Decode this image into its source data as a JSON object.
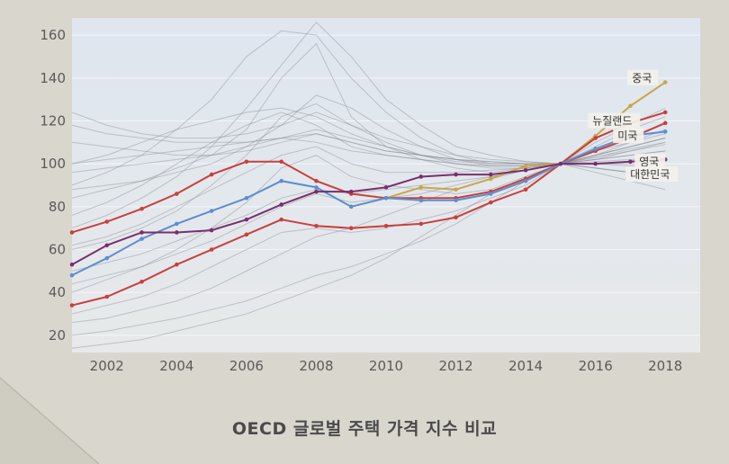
{
  "caption": "OECD 글로벌 주택 가격 지수 비교",
  "chart_data": {
    "type": "line",
    "title": "OECD 글로벌 주택 가격 지수 비교",
    "xlabel": "",
    "ylabel": "",
    "x": [
      2001,
      2002,
      2003,
      2004,
      2005,
      2006,
      2007,
      2008,
      2009,
      2010,
      2011,
      2012,
      2013,
      2014,
      2015,
      2016,
      2017,
      2018
    ],
    "xlim": [
      2001,
      2019
    ],
    "ylim": [
      12,
      168
    ],
    "xticks": [
      "2002",
      "2004",
      "2006",
      "2008",
      "2010",
      "2012",
      "2014",
      "2016",
      "2018"
    ],
    "yticks": [
      "20",
      "40",
      "60",
      "80",
      "100",
      "120",
      "140",
      "160"
    ],
    "grid": true,
    "series": [
      {
        "name": "중국",
        "color": "#c8a64a",
        "x": [
          2010,
          2011,
          2012,
          2013,
          2014,
          2015,
          2016,
          2017,
          2018
        ],
        "values": [
          84,
          89,
          88,
          93,
          99,
          100,
          113,
          127,
          138
        ]
      },
      {
        "name": "뉴질랜드",
        "color": "#c8403c",
        "x": [
          2001,
          2002,
          2003,
          2004,
          2005,
          2006,
          2007,
          2008,
          2009,
          2010,
          2011,
          2012,
          2013,
          2014,
          2015,
          2016,
          2017,
          2018
        ],
        "values": [
          34,
          38,
          45,
          53,
          60,
          67,
          74,
          71,
          70,
          71,
          72,
          75,
          82,
          88,
          100,
          112,
          119,
          124
        ]
      },
      {
        "name": "미국",
        "color": "#c8403c",
        "x": [
          2001,
          2002,
          2003,
          2004,
          2005,
          2006,
          2007,
          2008,
          2009,
          2010,
          2011,
          2012,
          2013,
          2014,
          2015,
          2016,
          2017,
          2018
        ],
        "values": [
          68,
          73,
          79,
          86,
          95,
          101,
          101,
          92,
          86,
          84,
          84,
          84,
          87,
          93,
          100,
          106,
          112,
          119
        ]
      },
      {
        "name": "영국",
        "color": "#5b8fcf",
        "x": [
          2001,
          2002,
          2003,
          2004,
          2005,
          2006,
          2007,
          2008,
          2009,
          2010,
          2011,
          2012,
          2013,
          2014,
          2015,
          2016,
          2017,
          2018
        ],
        "values": [
          48,
          56,
          65,
          72,
          78,
          84,
          92,
          89,
          80,
          84,
          83,
          83,
          86,
          92,
          100,
          107,
          113,
          115
        ]
      },
      {
        "name": "대한민국",
        "color": "#7a2e6e",
        "x": [
          2001,
          2002,
          2003,
          2004,
          2005,
          2006,
          2007,
          2008,
          2009,
          2010,
          2011,
          2012,
          2013,
          2014,
          2015,
          2016,
          2017,
          2018
        ],
        "values": [
          53,
          62,
          68,
          68,
          69,
          74,
          81,
          87,
          87,
          89,
          94,
          95,
          95,
          97,
          100,
          100,
          101,
          102
        ]
      }
    ],
    "background_series": [
      [
        30,
        34,
        38,
        44,
        52,
        60,
        68,
        70,
        68,
        70,
        74,
        78,
        84,
        90,
        100,
        108,
        116,
        122
      ],
      [
        40,
        46,
        52,
        60,
        70,
        82,
        98,
        104,
        94,
        90,
        88,
        86,
        88,
        94,
        100,
        104,
        108,
        112
      ],
      [
        84,
        88,
        92,
        98,
        104,
        116,
        140,
        156,
        122,
        108,
        102,
        98,
        96,
        98,
        100,
        102,
        104,
        106
      ],
      [
        124,
        118,
        114,
        112,
        112,
        114,
        118,
        124,
        118,
        112,
        108,
        104,
        102,
        101,
        100,
        98,
        96,
        94
      ],
      [
        70,
        76,
        84,
        94,
        108,
        126,
        146,
        166,
        150,
        130,
        118,
        108,
        104,
        101,
        100,
        98,
        96,
        94
      ],
      [
        90,
        96,
        104,
        116,
        130,
        150,
        162,
        160,
        140,
        124,
        112,
        104,
        100,
        100,
        100,
        101,
        102,
        103
      ],
      [
        60,
        64,
        70,
        78,
        90,
        104,
        122,
        128,
        118,
        110,
        104,
        100,
        98,
        98,
        100,
        104,
        108,
        112
      ],
      [
        50,
        54,
        58,
        64,
        70,
        76,
        84,
        88,
        86,
        88,
        90,
        92,
        94,
        97,
        100,
        104,
        110,
        116
      ],
      [
        100,
        102,
        104,
        106,
        108,
        110,
        112,
        110,
        106,
        104,
        102,
        100,
        99,
        99,
        100,
        100,
        101,
        101
      ],
      [
        110,
        108,
        106,
        104,
        104,
        106,
        110,
        114,
        110,
        106,
        104,
        102,
        101,
        100,
        100,
        98,
        96,
        95
      ],
      [
        20,
        22,
        25,
        28,
        32,
        36,
        42,
        48,
        52,
        58,
        64,
        72,
        82,
        92,
        100,
        110,
        118,
        126
      ],
      [
        14,
        16,
        18,
        22,
        26,
        30,
        36,
        42,
        48,
        56,
        66,
        76,
        86,
        94,
        100,
        106,
        110,
        114
      ],
      [
        76,
        82,
        90,
        100,
        110,
        118,
        124,
        118,
        108,
        104,
        102,
        100,
        99,
        99,
        100,
        102,
        106,
        110
      ],
      [
        96,
        98,
        100,
        102,
        104,
        108,
        112,
        116,
        112,
        108,
        104,
        102,
        100,
        100,
        100,
        100,
        100,
        100
      ],
      [
        44,
        48,
        52,
        58,
        64,
        72,
        80,
        86,
        82,
        84,
        86,
        90,
        94,
        97,
        100,
        103,
        106,
        109
      ],
      [
        118,
        114,
        112,
        110,
        110,
        110,
        112,
        114,
        110,
        106,
        104,
        102,
        101,
        100,
        100,
        96,
        92,
        88
      ],
      [
        88,
        90,
        92,
        96,
        100,
        108,
        118,
        132,
        126,
        116,
        108,
        102,
        99,
        99,
        100,
        102,
        104,
        106
      ],
      [
        62,
        66,
        72,
        80,
        88,
        96,
        104,
        108,
        100,
        96,
        96,
        96,
        97,
        98,
        100,
        103,
        107,
        110
      ],
      [
        26,
        28,
        32,
        36,
        42,
        50,
        58,
        66,
        70,
        76,
        82,
        88,
        93,
        97,
        100,
        104,
        108,
        112
      ],
      [
        100,
        104,
        110,
        116,
        120,
        124,
        126,
        122,
        114,
        108,
        104,
        101,
        100,
        100,
        100,
        100,
        99,
        98
      ]
    ]
  }
}
